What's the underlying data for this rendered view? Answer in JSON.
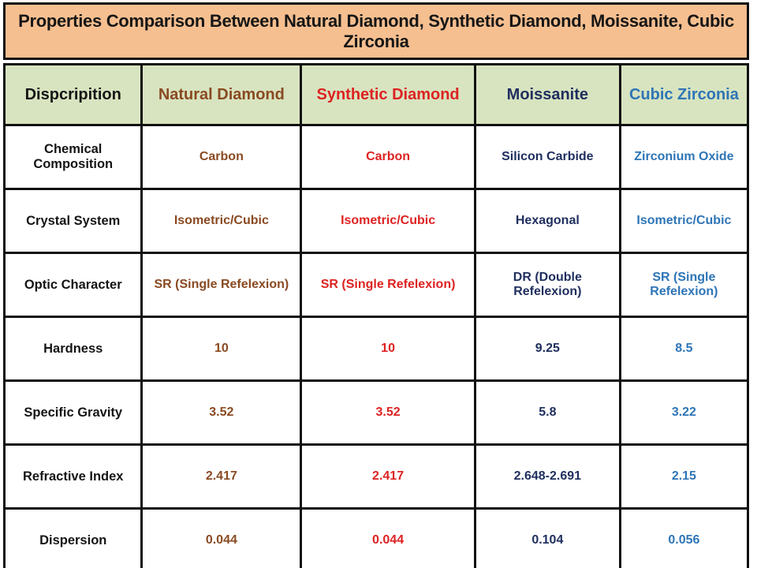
{
  "title": "Properties Comparison Between Natural Diamond, Synthetic Diamond, Moissanite, Cubic Zirconia",
  "colors": {
    "title_bg": "#f6bf90",
    "header_bg": "#d8e4c0",
    "border": "#111111",
    "description_text": "#151515"
  },
  "table": {
    "columns": [
      {
        "label": "Dispcripition",
        "color": "#151515"
      },
      {
        "label": "Natural Diamond",
        "color": "#8a4a22"
      },
      {
        "label": "Synthetic Diamond",
        "color": "#dd2222"
      },
      {
        "label": "Moissanite",
        "color": "#1f2e5e"
      },
      {
        "label": "Cubic Zirconia",
        "color": "#2e75b6"
      }
    ],
    "rows": [
      {
        "property": "Chemical Composition",
        "values": [
          "Carbon",
          "Carbon",
          "Silicon Carbide",
          "Zirconium Oxide"
        ]
      },
      {
        "property": "Crystal System",
        "values": [
          "Isometric/Cubic",
          "Isometric/Cubic",
          "Hexagonal",
          "Isometric/Cubic"
        ]
      },
      {
        "property": "Optic Character",
        "values": [
          "SR (Single Refelexion)",
          "SR (Single Refelexion)",
          "DR (Double Refelexion)",
          "SR (Single Refelexion)"
        ]
      },
      {
        "property": "Hardness",
        "values": [
          "10",
          "10",
          "9.25",
          "8.5"
        ]
      },
      {
        "property": "Specific Gravity",
        "values": [
          "3.52",
          "3.52",
          "5.8",
          "3.22"
        ]
      },
      {
        "property": "Refractive Index",
        "values": [
          "2.417",
          "2.417",
          "2.648-2.691",
          "2.15"
        ]
      },
      {
        "property": "Dispersion",
        "values": [
          "0.044",
          "0.044",
          "0.104",
          "0.056"
        ]
      }
    ]
  }
}
